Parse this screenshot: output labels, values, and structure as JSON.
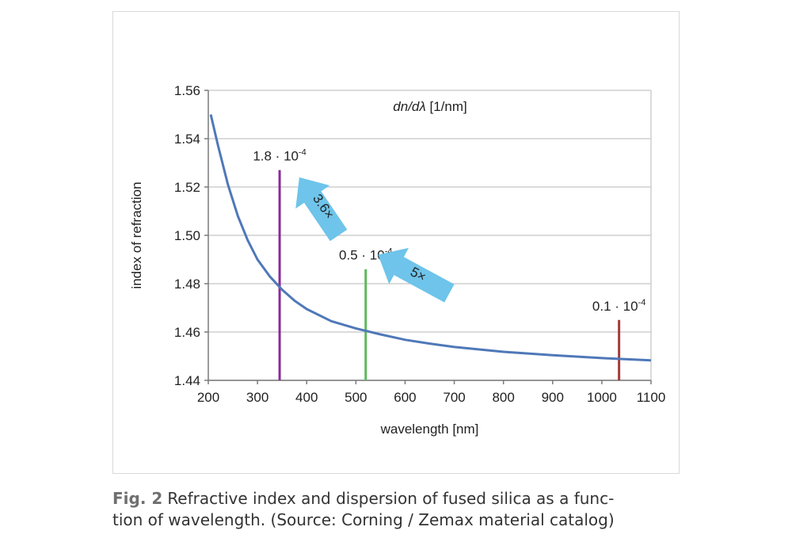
{
  "chart_data": {
    "type": "line",
    "title": "dn/dλ [1/nm]",
    "xlabel": "wavelength [nm]",
    "ylabel": "index of refraction",
    "xlim": [
      200,
      1100
    ],
    "ylim": [
      1.44,
      1.56
    ],
    "xticks": [
      "200",
      "300",
      "400",
      "500",
      "600",
      "700",
      "800",
      "900",
      "1000",
      "1100"
    ],
    "yticks": [
      "1.44",
      "1.46",
      "1.48",
      "1.50",
      "1.52",
      "1.54",
      "1.56"
    ],
    "grid": true,
    "series": [
      {
        "color": "#4f78b8",
        "x": [
          205,
          220,
          240,
          260,
          280,
          300,
          325,
          350,
          375,
          400,
          450,
          500,
          550,
          600,
          650,
          700,
          800,
          900,
          1000,
          1100
        ],
        "y": [
          1.55,
          1.537,
          1.521,
          1.508,
          1.498,
          1.49,
          1.483,
          1.4775,
          1.473,
          1.4695,
          1.4645,
          1.4615,
          1.459,
          1.4568,
          1.4552,
          1.4538,
          1.4518,
          1.4504,
          1.4492,
          1.4483
        ]
      }
    ],
    "markers": [
      {
        "x": 345,
        "y_top": 1.527,
        "color": "#8b2a9b",
        "label": "1.8 · 10",
        "exp": "-4"
      },
      {
        "x": 520,
        "y_top": 1.486,
        "color": "#5cb85c",
        "label": "0.5 · 10",
        "exp": "-4"
      },
      {
        "x": 1035,
        "y_top": 1.465,
        "color": "#a33b3b",
        "label": "0.1 · 10",
        "exp": "-4"
      }
    ],
    "arrows": [
      {
        "label": "3.6×",
        "color": "#6ec4ea",
        "from_x": 465,
        "from_y": 1.5,
        "to_x": 385,
        "to_y": 1.524
      },
      {
        "label": "5×",
        "color": "#6ec4ea",
        "from_x": 690,
        "from_y": 1.476,
        "to_x": 545,
        "to_y": 1.492
      }
    ]
  },
  "caption": {
    "fig_label": "Fig. 2",
    "text": "Refractive index and dispersion of fused silica as a function of wavelength. (Source: Corning / Zemax material catalog)",
    "line1": "Refractive index and dispersion of fused silica as a func-",
    "line2": "tion of wavelength. (Source: Corning / Zemax material catalog)"
  }
}
